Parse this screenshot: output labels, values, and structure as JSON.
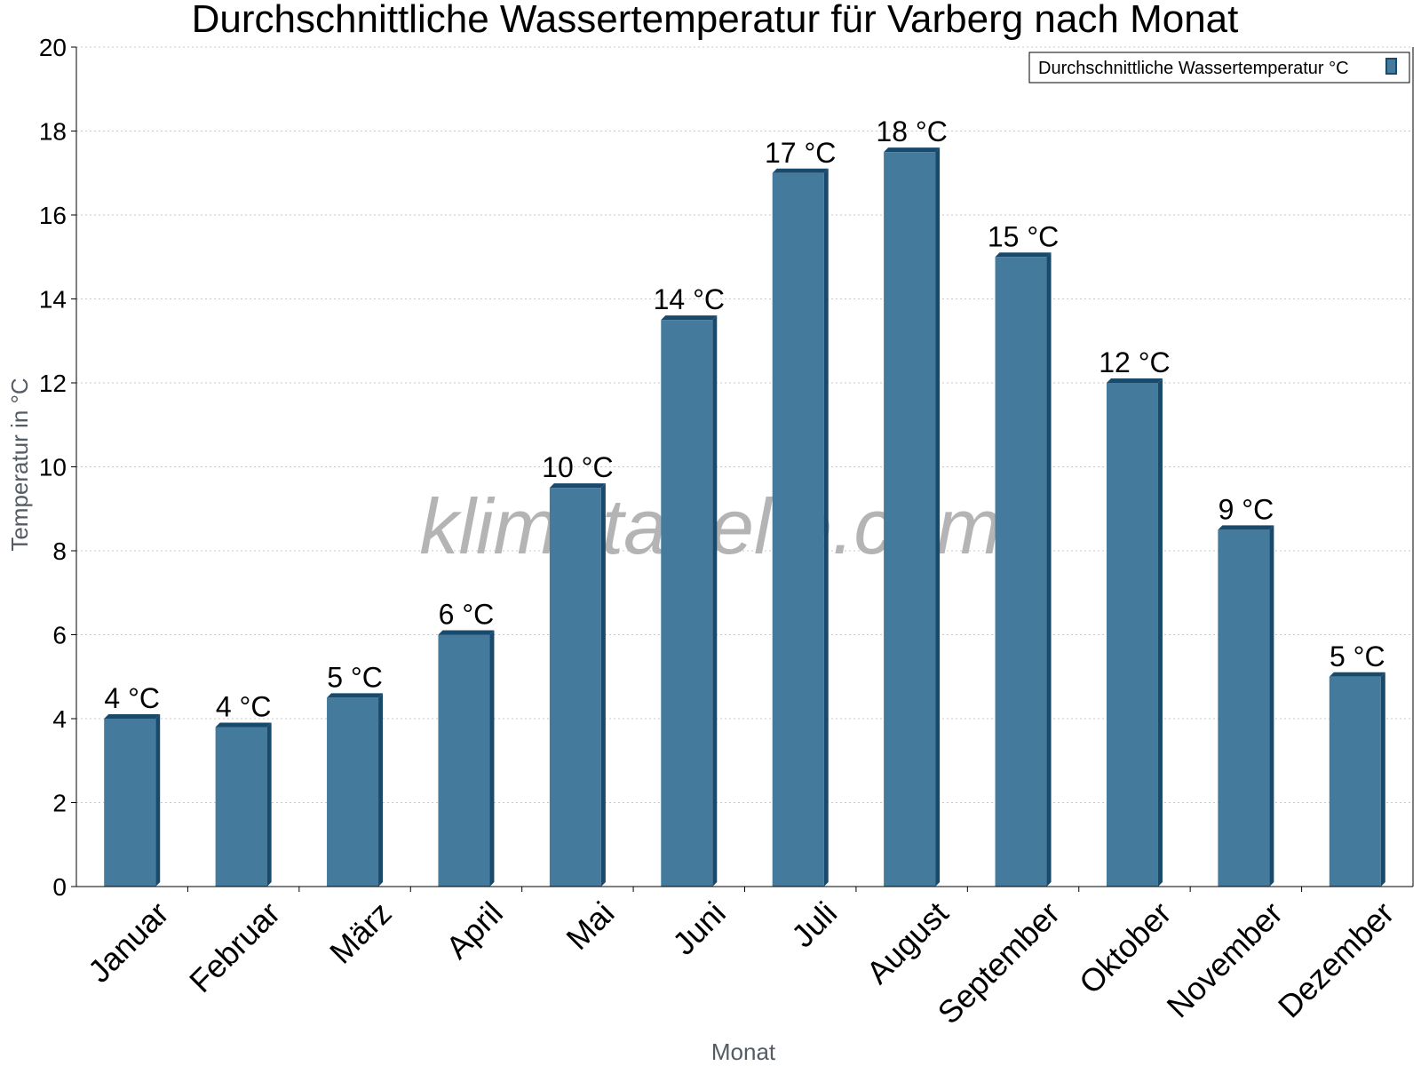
{
  "chart_data": {
    "type": "bar",
    "title": "Durchschnittliche Wassertemperatur für Varberg nach Monat",
    "xlabel": "Monat",
    "ylabel": "Temperatur in °C",
    "ylim": [
      0,
      20
    ],
    "yticks": [
      0,
      2,
      4,
      6,
      8,
      10,
      12,
      14,
      16,
      18,
      20
    ],
    "grid": true,
    "legend_position": "top-right",
    "watermark": "klimatabelle.com",
    "categories": [
      "Januar",
      "Februar",
      "März",
      "April",
      "Mai",
      "Juni",
      "Juli",
      "August",
      "September",
      "Oktober",
      "November",
      "Dezember"
    ],
    "series": [
      {
        "name": "Durchschnittliche Wassertemperatur °C",
        "color": "#447a9c",
        "side_color": "#1a4a6b",
        "values": [
          4.0,
          3.8,
          4.5,
          6.0,
          9.5,
          13.5,
          17.0,
          17.5,
          15.0,
          12.0,
          8.5,
          5.0
        ],
        "labels": [
          "4 °C",
          "4 °C",
          "5 °C",
          "6 °C",
          "10 °C",
          "14 °C",
          "17 °C",
          "18 °C",
          "15 °C",
          "12 °C",
          "9 °C",
          "5 °C"
        ]
      }
    ]
  }
}
